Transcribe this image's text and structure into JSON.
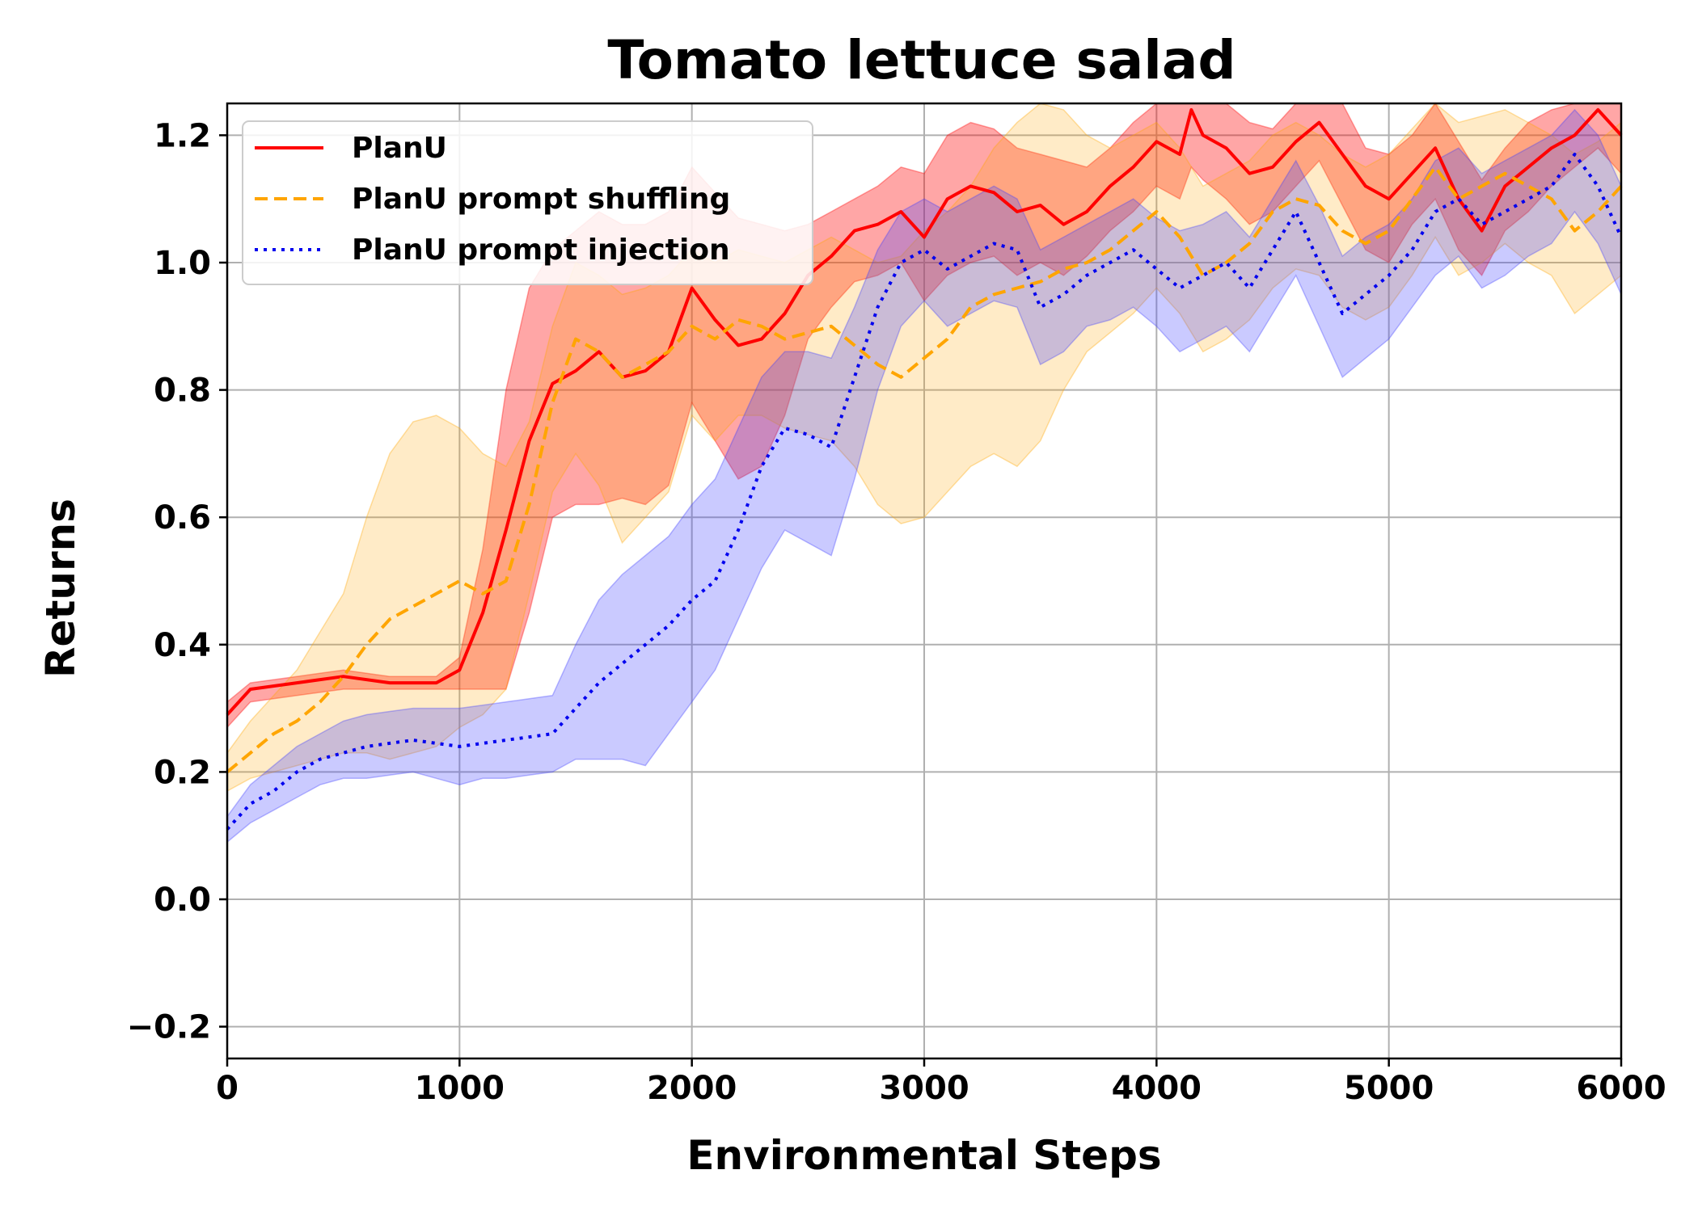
{
  "chart_data": {
    "type": "line",
    "title": "Tomato lettuce salad",
    "xlabel": "Environmental Steps",
    "ylabel": "Returns",
    "xlim": [
      0,
      6000
    ],
    "ylim": [
      -0.25,
      1.25
    ],
    "xticks": [
      0,
      1000,
      2000,
      3000,
      4000,
      5000,
      6000
    ],
    "xtick_labels": [
      "0",
      "1000",
      "2000",
      "3000",
      "4000",
      "5000",
      "6000"
    ],
    "yticks": [
      -0.2,
      0.0,
      0.2,
      0.4,
      0.6,
      0.8,
      1.0,
      1.2
    ],
    "ytick_labels": [
      "−0.2",
      "0.0",
      "0.2",
      "0.4",
      "0.6",
      "0.8",
      "1.0",
      "1.2"
    ],
    "grid": true,
    "legend_position": "top-left",
    "series": [
      {
        "name": "PlanU",
        "color": "#ff0000",
        "band_color": "#ff0000",
        "band_opacity": 0.35,
        "line_style": "solid",
        "x": [
          0,
          100,
          300,
          500,
          700,
          900,
          1000,
          1100,
          1200,
          1300,
          1400,
          1500,
          1600,
          1700,
          1800,
          1900,
          2000,
          2100,
          2200,
          2300,
          2400,
          2500,
          2600,
          2700,
          2800,
          2900,
          3000,
          3100,
          3200,
          3300,
          3400,
          3500,
          3600,
          3700,
          3800,
          3900,
          4000,
          4100,
          4150,
          4200,
          4300,
          4400,
          4500,
          4600,
          4700,
          4800,
          4900,
          5000,
          5100,
          5200,
          5300,
          5400,
          5500,
          5600,
          5700,
          5800,
          5900,
          6000
        ],
        "y": [
          0.29,
          0.33,
          0.34,
          0.35,
          0.34,
          0.34,
          0.36,
          0.45,
          0.58,
          0.72,
          0.81,
          0.83,
          0.86,
          0.82,
          0.83,
          0.86,
          0.96,
          0.91,
          0.87,
          0.88,
          0.92,
          0.98,
          1.01,
          1.05,
          1.06,
          1.08,
          1.04,
          1.1,
          1.12,
          1.11,
          1.08,
          1.09,
          1.06,
          1.08,
          1.12,
          1.15,
          1.19,
          1.17,
          1.24,
          1.2,
          1.18,
          1.14,
          1.15,
          1.19,
          1.22,
          1.17,
          1.12,
          1.1,
          1.14,
          1.18,
          1.1,
          1.05,
          1.12,
          1.15,
          1.18,
          1.2,
          1.24,
          1.2
        ],
        "upper": [
          0.31,
          0.34,
          0.35,
          0.36,
          0.35,
          0.35,
          0.38,
          0.55,
          0.8,
          0.96,
          1.02,
          1.05,
          1.08,
          1.06,
          1.06,
          1.08,
          1.15,
          1.11,
          1.07,
          1.06,
          1.05,
          1.06,
          1.08,
          1.1,
          1.12,
          1.15,
          1.14,
          1.2,
          1.22,
          1.21,
          1.18,
          1.17,
          1.16,
          1.15,
          1.18,
          1.22,
          1.25,
          1.25,
          1.25,
          1.25,
          1.25,
          1.22,
          1.21,
          1.25,
          1.25,
          1.25,
          1.18,
          1.17,
          1.2,
          1.25,
          1.19,
          1.13,
          1.18,
          1.22,
          1.24,
          1.25,
          1.25,
          1.25
        ],
        "lower": [
          0.27,
          0.31,
          0.32,
          0.33,
          0.33,
          0.33,
          0.33,
          0.33,
          0.33,
          0.45,
          0.6,
          0.62,
          0.62,
          0.63,
          0.62,
          0.65,
          0.78,
          0.72,
          0.66,
          0.68,
          0.76,
          0.88,
          0.93,
          0.97,
          0.98,
          1.0,
          0.94,
          0.98,
          1.0,
          1.01,
          0.98,
          1.0,
          0.98,
          1.01,
          1.05,
          1.08,
          1.12,
          1.1,
          1.15,
          1.13,
          1.1,
          1.06,
          1.08,
          1.12,
          1.16,
          1.09,
          1.02,
          1.0,
          1.06,
          1.1,
          1.02,
          0.98,
          1.05,
          1.08,
          1.12,
          1.15,
          1.18,
          1.14
        ]
      },
      {
        "name": "PlanU prompt shuffling",
        "color": "#ffa500",
        "band_color": "#ffa500",
        "band_opacity": 0.22,
        "line_style": "dashed",
        "x": [
          0,
          100,
          200,
          300,
          400,
          500,
          600,
          700,
          800,
          900,
          1000,
          1100,
          1200,
          1300,
          1400,
          1500,
          1600,
          1700,
          1800,
          1900,
          2000,
          2100,
          2200,
          2300,
          2400,
          2500,
          2600,
          2700,
          2800,
          2900,
          3000,
          3100,
          3200,
          3300,
          3400,
          3500,
          3600,
          3700,
          3800,
          3900,
          4000,
          4100,
          4200,
          4300,
          4400,
          4500,
          4600,
          4700,
          4800,
          4900,
          5000,
          5100,
          5200,
          5300,
          5400,
          5500,
          5600,
          5700,
          5800,
          5900,
          6000
        ],
        "y": [
          0.2,
          0.23,
          0.26,
          0.28,
          0.31,
          0.35,
          0.4,
          0.44,
          0.46,
          0.48,
          0.5,
          0.48,
          0.5,
          0.62,
          0.78,
          0.88,
          0.86,
          0.82,
          0.84,
          0.86,
          0.9,
          0.88,
          0.91,
          0.9,
          0.88,
          0.89,
          0.9,
          0.87,
          0.84,
          0.82,
          0.85,
          0.88,
          0.93,
          0.95,
          0.96,
          0.97,
          0.99,
          1.0,
          1.02,
          1.05,
          1.08,
          1.04,
          0.98,
          1.0,
          1.03,
          1.08,
          1.1,
          1.09,
          1.05,
          1.03,
          1.05,
          1.1,
          1.15,
          1.1,
          1.12,
          1.14,
          1.12,
          1.1,
          1.05,
          1.08,
          1.12
        ],
        "upper": [
          0.23,
          0.28,
          0.32,
          0.36,
          0.42,
          0.48,
          0.6,
          0.7,
          0.75,
          0.76,
          0.74,
          0.7,
          0.68,
          0.75,
          0.9,
          1.0,
          0.98,
          0.95,
          0.96,
          0.98,
          1.02,
          1.0,
          1.02,
          1.01,
          1.0,
          1.02,
          1.04,
          1.02,
          1.0,
          1.01,
          1.05,
          1.08,
          1.12,
          1.18,
          1.22,
          1.25,
          1.24,
          1.2,
          1.18,
          1.2,
          1.22,
          1.18,
          1.12,
          1.14,
          1.16,
          1.2,
          1.22,
          1.2,
          1.17,
          1.15,
          1.17,
          1.21,
          1.25,
          1.22,
          1.23,
          1.24,
          1.22,
          1.2,
          1.17,
          1.19,
          1.22
        ],
        "lower": [
          0.17,
          0.19,
          0.2,
          0.21,
          0.22,
          0.23,
          0.23,
          0.22,
          0.23,
          0.24,
          0.27,
          0.29,
          0.33,
          0.48,
          0.64,
          0.7,
          0.65,
          0.56,
          0.6,
          0.64,
          0.76,
          0.72,
          0.76,
          0.76,
          0.74,
          0.73,
          0.72,
          0.68,
          0.62,
          0.59,
          0.6,
          0.64,
          0.68,
          0.7,
          0.68,
          0.72,
          0.8,
          0.86,
          0.89,
          0.92,
          0.96,
          0.92,
          0.86,
          0.88,
          0.91,
          0.96,
          0.99,
          0.98,
          0.93,
          0.91,
          0.93,
          0.98,
          1.04,
          0.98,
          1.0,
          1.03,
          1.0,
          0.98,
          0.92,
          0.95,
          0.98
        ]
      },
      {
        "name": "PlanU prompt injection",
        "color": "#0000ee",
        "band_color": "#4040ff",
        "band_opacity": 0.28,
        "line_style": "dotted",
        "x": [
          0,
          100,
          200,
          300,
          400,
          500,
          600,
          700,
          800,
          900,
          1000,
          1100,
          1200,
          1300,
          1400,
          1500,
          1600,
          1700,
          1800,
          1900,
          2000,
          2100,
          2200,
          2300,
          2400,
          2500,
          2600,
          2700,
          2800,
          2900,
          3000,
          3100,
          3200,
          3300,
          3400,
          3500,
          3600,
          3700,
          3800,
          3900,
          4000,
          4100,
          4200,
          4300,
          4400,
          4500,
          4600,
          4700,
          4800,
          4900,
          5000,
          5100,
          5200,
          5300,
          5400,
          5500,
          5600,
          5700,
          5800,
          5900,
          6000
        ],
        "y": [
          0.11,
          0.15,
          0.17,
          0.2,
          0.22,
          0.23,
          0.24,
          0.245,
          0.25,
          0.245,
          0.24,
          0.245,
          0.25,
          0.255,
          0.26,
          0.3,
          0.34,
          0.37,
          0.4,
          0.43,
          0.47,
          0.5,
          0.58,
          0.68,
          0.74,
          0.73,
          0.71,
          0.82,
          0.93,
          1.0,
          1.02,
          0.99,
          1.01,
          1.03,
          1.02,
          0.93,
          0.95,
          0.98,
          1.0,
          1.02,
          0.99,
          0.96,
          0.98,
          1.0,
          0.96,
          1.02,
          1.08,
          1.0,
          0.92,
          0.95,
          0.98,
          1.02,
          1.08,
          1.1,
          1.06,
          1.08,
          1.1,
          1.12,
          1.17,
          1.12,
          1.04
        ],
        "upper": [
          0.13,
          0.18,
          0.21,
          0.24,
          0.26,
          0.28,
          0.29,
          0.295,
          0.3,
          0.3,
          0.3,
          0.305,
          0.31,
          0.315,
          0.32,
          0.4,
          0.47,
          0.51,
          0.54,
          0.57,
          0.62,
          0.66,
          0.74,
          0.82,
          0.86,
          0.86,
          0.85,
          0.93,
          1.02,
          1.08,
          1.1,
          1.08,
          1.1,
          1.12,
          1.1,
          1.02,
          1.04,
          1.06,
          1.08,
          1.1,
          1.07,
          1.05,
          1.06,
          1.08,
          1.04,
          1.1,
          1.16,
          1.09,
          1.01,
          1.04,
          1.06,
          1.1,
          1.16,
          1.18,
          1.14,
          1.16,
          1.18,
          1.2,
          1.24,
          1.2,
          1.12
        ],
        "lower": [
          0.09,
          0.12,
          0.14,
          0.16,
          0.18,
          0.19,
          0.19,
          0.195,
          0.2,
          0.19,
          0.18,
          0.19,
          0.19,
          0.195,
          0.2,
          0.22,
          0.22,
          0.22,
          0.21,
          0.26,
          0.31,
          0.36,
          0.44,
          0.52,
          0.58,
          0.56,
          0.54,
          0.66,
          0.8,
          0.9,
          0.94,
          0.9,
          0.92,
          0.94,
          0.93,
          0.84,
          0.86,
          0.9,
          0.91,
          0.93,
          0.9,
          0.86,
          0.88,
          0.9,
          0.86,
          0.92,
          0.98,
          0.9,
          0.82,
          0.85,
          0.88,
          0.93,
          0.98,
          1.01,
          0.96,
          0.98,
          1.01,
          1.03,
          1.08,
          1.03,
          0.95
        ]
      }
    ]
  }
}
